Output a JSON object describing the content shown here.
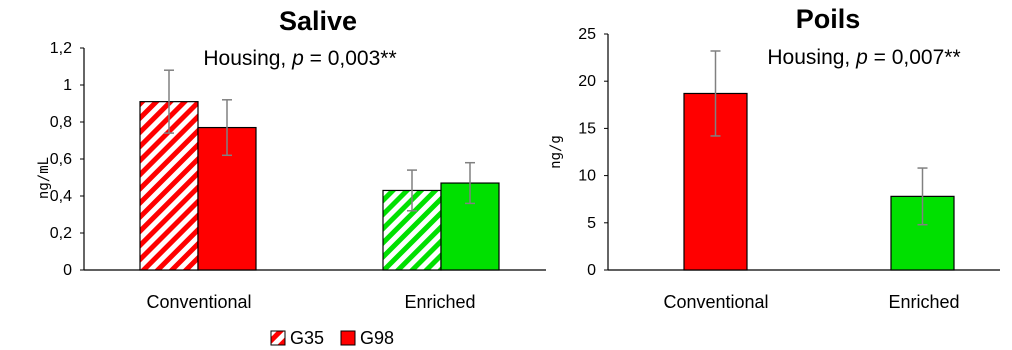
{
  "chart_data": [
    {
      "type": "bar",
      "title": "Salive",
      "annotation_prefix": "Housing, ",
      "annotation_p": "p",
      "annotation_suffix": " = 0,003**",
      "ylabel": "ng/mL",
      "categories": [
        "Conventional",
        "Enriched"
      ],
      "ylim": [
        0,
        1.2
      ],
      "yticks": [
        "0",
        "0,2",
        "0,4",
        "0,6",
        "0,8",
        "1",
        "1,2"
      ],
      "ytick_values": [
        0,
        0.2,
        0.4,
        0.6,
        0.8,
        1.0,
        1.2
      ],
      "series": [
        {
          "name": "G35",
          "values": [
            0.91,
            0.43
          ],
          "errors": [
            0.17,
            0.11
          ],
          "pattern": "hatched"
        },
        {
          "name": "G98",
          "values": [
            0.77,
            0.47
          ],
          "errors": [
            0.15,
            0.11
          ],
          "pattern": "solid"
        }
      ],
      "category_colors": [
        "#ff0000",
        "#00e000"
      ]
    },
    {
      "type": "bar",
      "title": "Poils",
      "annotation_prefix": "Housing, ",
      "annotation_p": "p",
      "annotation_suffix": " = 0,007**",
      "ylabel": "ng/g",
      "categories": [
        "Conventional",
        "Enriched"
      ],
      "ylim": [
        0,
        25
      ],
      "yticks": [
        "0",
        "5",
        "10",
        "15",
        "20",
        "25"
      ],
      "ytick_values": [
        0,
        5,
        10,
        15,
        20,
        25
      ],
      "values": [
        18.7,
        7.8
      ],
      "errors": [
        4.5,
        3.0
      ],
      "category_colors": [
        "#ff0000",
        "#00e000"
      ]
    }
  ],
  "legend": {
    "items": [
      {
        "label": "G35",
        "pattern": "hatched"
      },
      {
        "label": "G98",
        "pattern": "solid"
      }
    ],
    "color": "#ff0000",
    "placement": "bottom-center"
  }
}
